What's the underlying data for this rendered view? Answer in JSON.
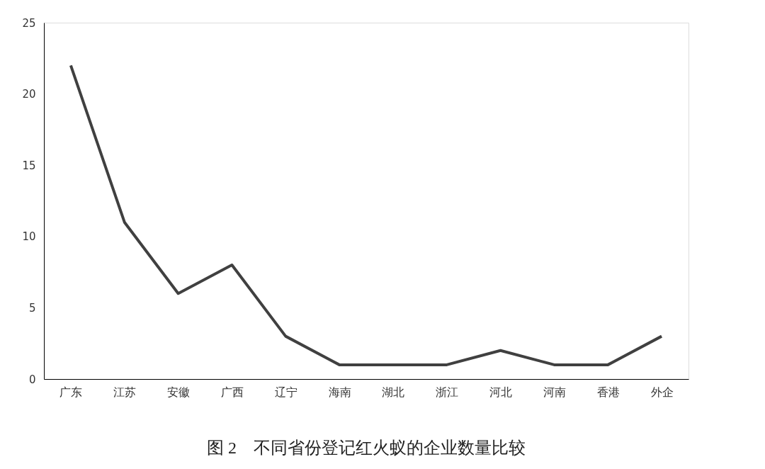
{
  "chart_data": {
    "type": "line",
    "title": "图 2　不同省份登记红火蚁的企业数量比较",
    "categories": [
      "广东",
      "江苏",
      "安徽",
      "广西",
      "辽宁",
      "海南",
      "湖北",
      "浙江",
      "河北",
      "河南",
      "香港",
      "外企"
    ],
    "values": [
      22,
      11,
      6,
      8,
      3,
      1,
      1,
      1,
      2,
      1,
      1,
      3
    ],
    "color": "#404040",
    "ylim": [
      0,
      25
    ],
    "yticks": [
      0,
      5,
      10,
      15,
      20,
      25
    ],
    "grid": false
  }
}
